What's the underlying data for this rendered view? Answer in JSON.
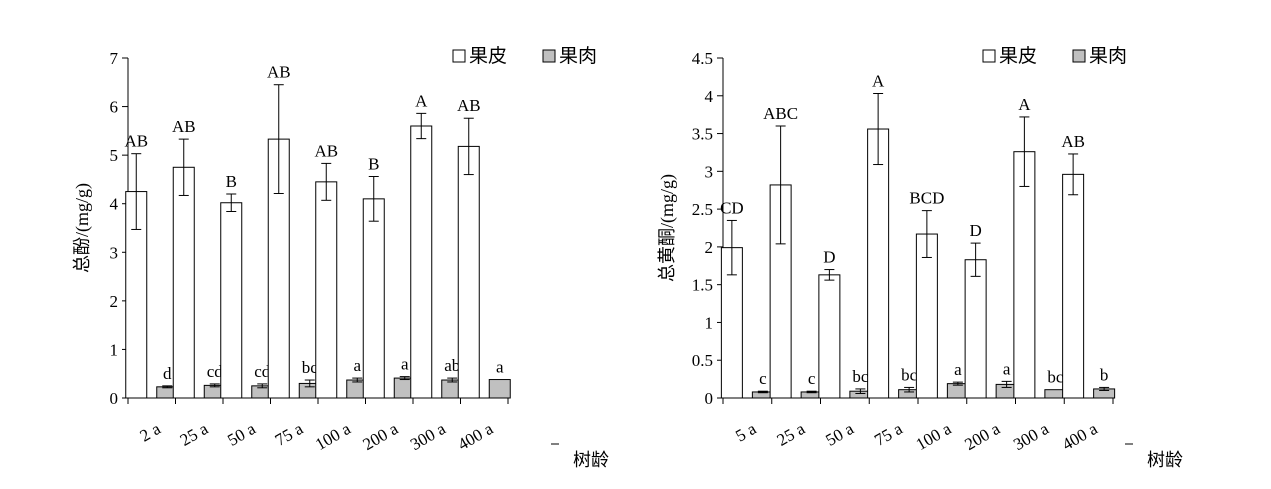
{
  "chart_data": [
    {
      "type": "bar",
      "ylabel": "总酚/(mg/g)",
      "xlabel": "树龄",
      "categories": [
        "2 a",
        "25 a",
        "50 a",
        "75 a",
        "100 a",
        "200 a",
        "300 a",
        "400 a"
      ],
      "ylim": [
        0,
        7
      ],
      "yticks": [
        0,
        1,
        2,
        3,
        4,
        5,
        6,
        7
      ],
      "legend_position": "top-right",
      "series": [
        {
          "name": "果皮",
          "color": "#ffffff",
          "values": [
            4.25,
            4.75,
            4.02,
            5.33,
            4.45,
            4.1,
            5.6,
            5.18
          ],
          "errors": [
            0.78,
            0.58,
            0.18,
            1.12,
            0.38,
            0.46,
            0.26,
            0.58
          ],
          "labels": [
            "AB",
            "AB",
            "B",
            "AB",
            "AB",
            "B",
            "A",
            "AB"
          ]
        },
        {
          "name": "果肉",
          "color": "#c0c0c0",
          "values": [
            0.23,
            0.26,
            0.25,
            0.3,
            0.37,
            0.41,
            0.37,
            0.38
          ],
          "errors": [
            0.02,
            0.03,
            0.04,
            0.07,
            0.04,
            0.03,
            0.04,
            0.0
          ],
          "labels": [
            "d",
            "cd",
            "cd",
            "bc",
            "a",
            "a",
            "ab",
            "a"
          ]
        }
      ]
    },
    {
      "type": "bar",
      "ylabel": "总黄酮/(mg/g)",
      "xlabel": "树龄",
      "categories": [
        "5 a",
        "25 a",
        "50 a",
        "75 a",
        "100 a",
        "200 a",
        "300 a",
        "400 a"
      ],
      "ylim": [
        0,
        4.5
      ],
      "yticks": [
        0,
        0.5,
        1,
        1.5,
        2,
        2.5,
        3,
        3.5,
        4,
        4.5
      ],
      "legend_position": "top-right",
      "series": [
        {
          "name": "果皮",
          "color": "#ffffff",
          "values": [
            1.99,
            2.82,
            1.63,
            3.56,
            2.17,
            1.83,
            3.26,
            2.96
          ],
          "errors": [
            0.36,
            0.78,
            0.07,
            0.47,
            0.31,
            0.22,
            0.46,
            0.27
          ],
          "labels": [
            "CD",
            "ABC",
            "D",
            "A",
            "BCD",
            "D",
            "A",
            "AB"
          ]
        },
        {
          "name": "果肉",
          "color": "#c0c0c0",
          "values": [
            0.08,
            0.08,
            0.09,
            0.11,
            0.19,
            0.18,
            0.11,
            0.12
          ],
          "errors": [
            0.01,
            0.01,
            0.03,
            0.03,
            0.02,
            0.04,
            0.0,
            0.02
          ],
          "labels": [
            "c",
            "c",
            "bc",
            "bc",
            "a",
            "a",
            "bc",
            "b"
          ]
        }
      ]
    }
  ]
}
